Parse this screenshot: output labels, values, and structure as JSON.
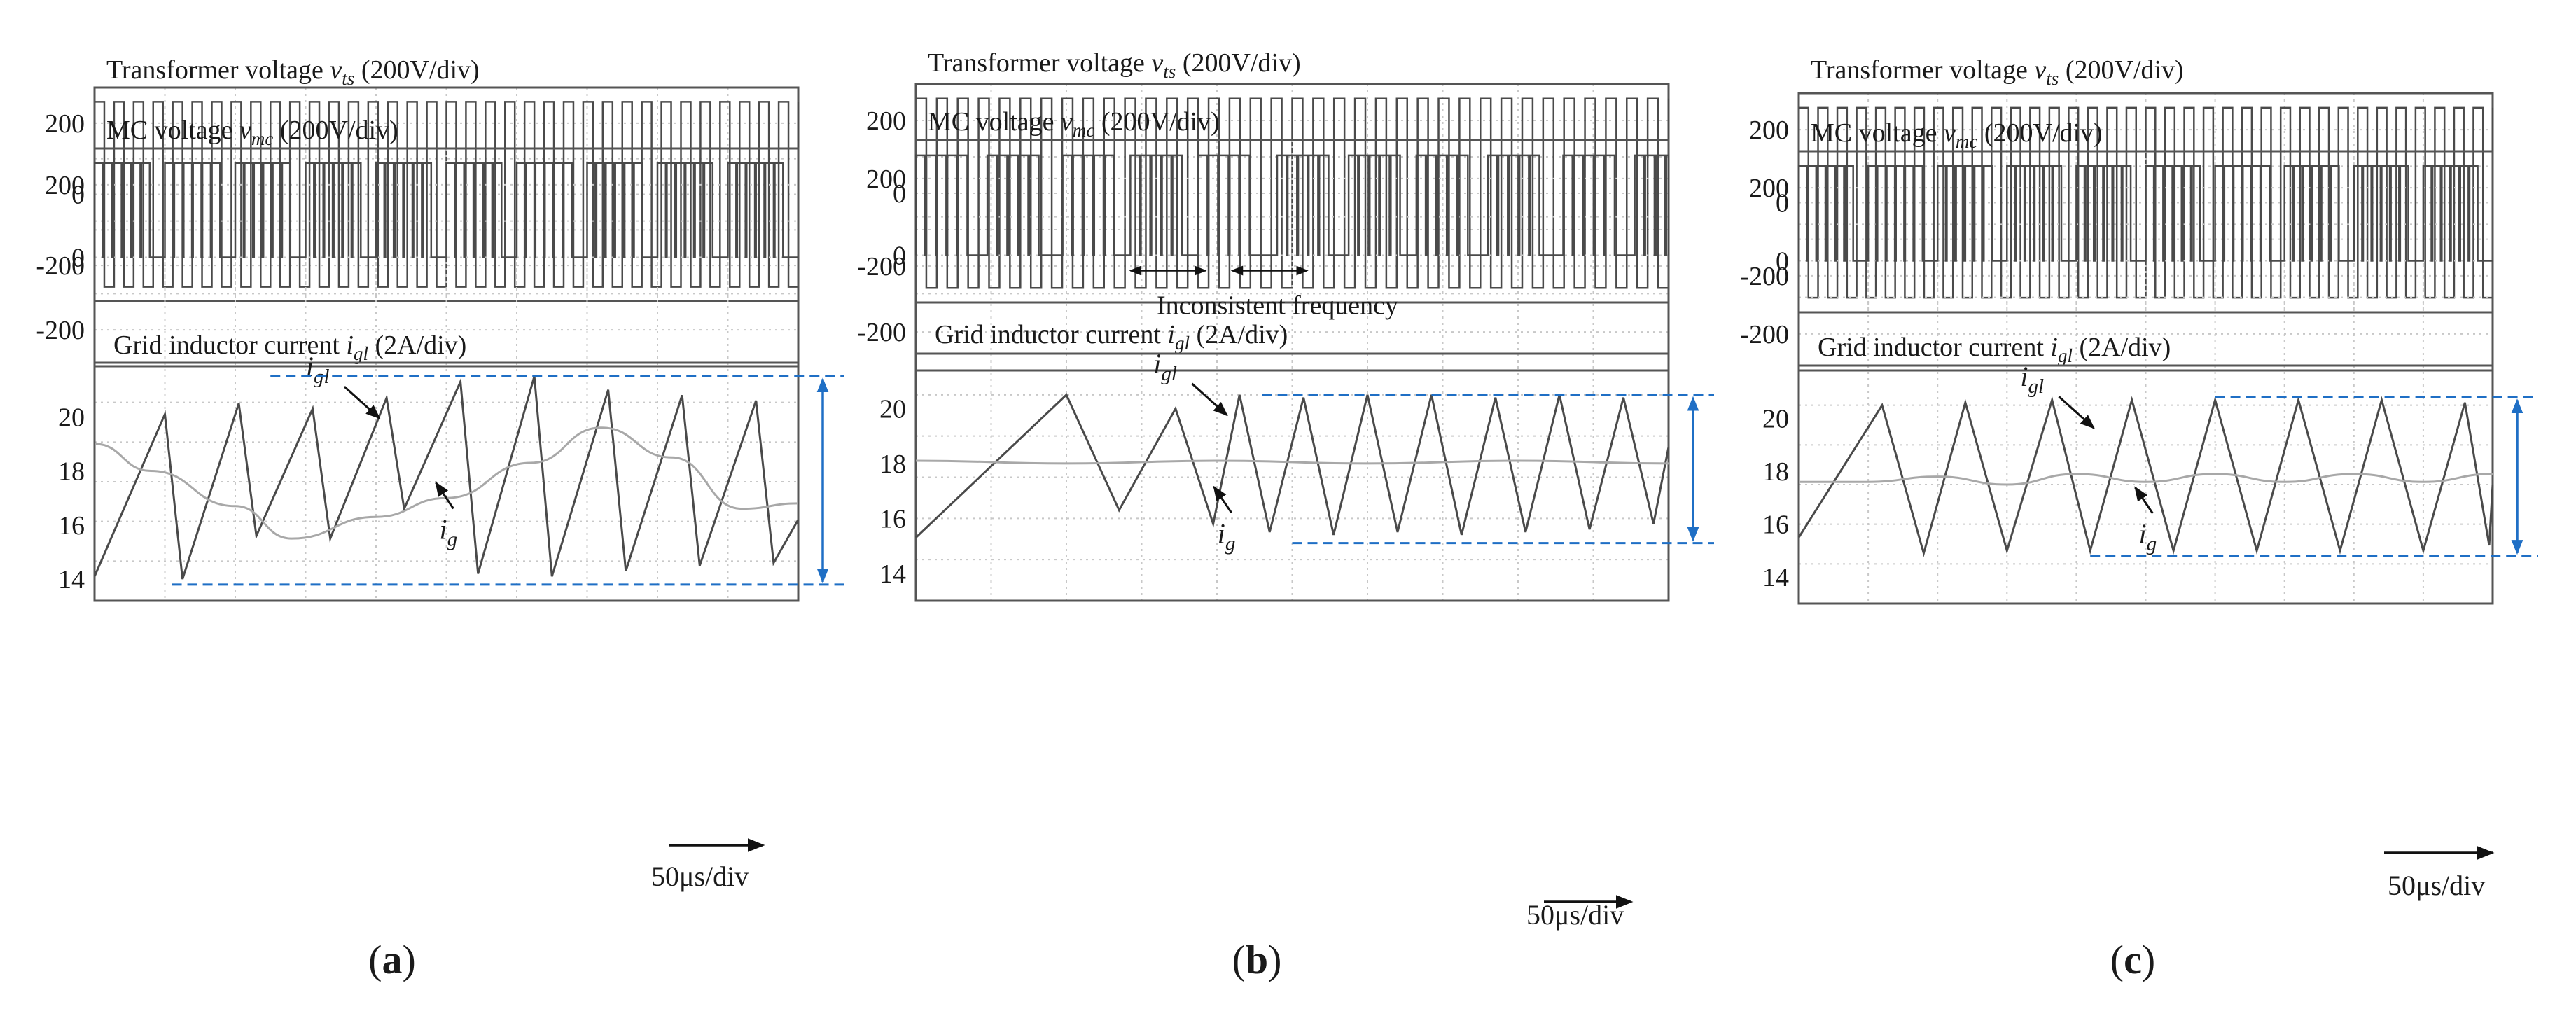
{
  "figure": {
    "panel_letters": [
      "a",
      "b",
      "c"
    ],
    "time_scale_label": "50μs/div",
    "chart_title_texts": {
      "transformer": {
        "prefix": "Transformer voltage ",
        "symbol": "v",
        "sub": "ts",
        "suffix": " (200V/div)"
      },
      "mc": {
        "prefix": "MC voltage ",
        "symbol": "v",
        "sub": "mc",
        "suffix": " (200V/div)"
      },
      "grid": {
        "prefix": "Grid inductor current ",
        "symbol": "i",
        "sub": "gl",
        "suffix": " (2A/div)"
      }
    },
    "series_labels": {
      "igl": {
        "symbol": "i",
        "sub": "gl"
      },
      "ig": {
        "symbol": "i",
        "sub": "g"
      }
    },
    "colors": {
      "trace": "#4a4a4a",
      "trace_light": "#a8a8a8",
      "grid": "#c8c8c8",
      "frame": "#555555",
      "annotation": "#1f6fc5",
      "text": "#1a1a1a"
    }
  },
  "chart_data": [
    {
      "panel": "a",
      "type": "line",
      "transformer": {
        "title": "Transformer voltage v_ts (200V/div)",
        "yticks": [
          200,
          0,
          -200
        ],
        "ylim": [
          -300,
          300
        ],
        "levels": [
          260,
          -260
        ],
        "cycles": 36
      },
      "mc": {
        "title": "MC voltage v_mc (200V/div)",
        "yticks": [
          200,
          0,
          -200
        ],
        "ylim": [
          -300,
          300
        ],
        "level": 260,
        "group_starts": [
          0,
          0.1,
          0.2,
          0.3,
          0.4,
          0.5,
          0.6,
          0.7,
          0.8,
          0.9
        ],
        "group_width": 0.08,
        "pulses_per_group": 6
      },
      "grid": {
        "title": "Grid inductor current i_gl (2A/div)",
        "yticks": [
          20,
          18,
          16,
          14
        ],
        "ylim": [
          13.2,
          22
        ],
        "igl": {
          "peaks": [
            0.1,
            0.205,
            0.31,
            0.415,
            0.52,
            0.625,
            0.73,
            0.835,
            0.94
          ],
          "valleys": [
            0.0,
            0.125,
            0.23,
            0.335,
            0.44,
            0.545,
            0.65,
            0.755,
            0.86,
            0.965
          ],
          "peak_values": [
            20.1,
            20.5,
            20.3,
            20.7,
            21.3,
            21.5,
            21.0,
            20.8,
            20.6
          ],
          "valley_values": [
            14.1,
            14.0,
            15.6,
            15.5,
            16.6,
            14.2,
            14.1,
            14.3,
            14.5,
            14.6
          ],
          "end": [
            1.0,
            16.2
          ]
        },
        "ig": {
          "x": [
            0,
            0.08,
            0.2,
            0.28,
            0.4,
            0.5,
            0.62,
            0.72,
            0.82,
            0.92,
            1.0
          ],
          "y": [
            19.0,
            18.0,
            16.7,
            15.5,
            16.3,
            17.0,
            18.3,
            19.6,
            18.5,
            16.6,
            16.8
          ]
        },
        "label_igl_at": [
          0.38,
          20.6
        ],
        "label_ig_at": [
          0.5,
          16.4
        ],
        "annotation_range": [
          13.8,
          21.5
        ]
      }
    },
    {
      "panel": "b",
      "type": "line",
      "transformer": {
        "title": "Transformer voltage v_ts (200V/div)",
        "yticks": [
          200,
          0,
          -200
        ],
        "ylim": [
          -300,
          300
        ],
        "levels": [
          260,
          -260
        ],
        "cycles": 36
      },
      "mc": {
        "title": "MC voltage v_mc (200V/div)",
        "yticks": [
          200,
          0,
          -200
        ],
        "ylim": [
          -300,
          300
        ],
        "level": 260,
        "group_starts": [
          0,
          0.095,
          0.195,
          0.285,
          0.375,
          0.48,
          0.575,
          0.665,
          0.76,
          0.86,
          0.955
        ],
        "group_width": 0.07,
        "pulses_per_group": 5,
        "annotation": "Inconsistent frequency"
      },
      "grid": {
        "title": "Grid inductor current i_gl (2A/div)",
        "yticks": [
          20,
          18,
          16,
          14
        ],
        "ylim": [
          13.0,
          22
        ],
        "igl": {
          "peaks": [
            0.2,
            0.345,
            0.43,
            0.515,
            0.6,
            0.685,
            0.77,
            0.855,
            0.94
          ],
          "valleys": [
            0.0,
            0.27,
            0.395,
            0.47,
            0.555,
            0.64,
            0.725,
            0.81,
            0.895,
            0.98
          ],
          "peak_values": [
            20.5,
            20.0,
            20.5,
            20.4,
            20.5,
            20.5,
            20.4,
            20.5,
            20.4
          ],
          "valley_values": [
            15.3,
            16.3,
            15.8,
            15.5,
            15.4,
            15.5,
            15.4,
            15.5,
            15.6,
            15.8
          ],
          "end": [
            1.0,
            18.6
          ]
        },
        "ig": {
          "x": [
            0,
            0.2,
            0.4,
            0.6,
            0.8,
            1.0
          ],
          "y": [
            18.1,
            18.0,
            18.1,
            18.0,
            18.1,
            18.0
          ]
        },
        "label_igl_at": [
          0.39,
          20.4
        ],
        "label_ig_at": [
          0.41,
          16.0
        ],
        "annotation_range": [
          15.1,
          20.5
        ]
      }
    },
    {
      "panel": "c",
      "type": "line",
      "transformer": {
        "title": "Transformer voltage v_ts (200V/div)",
        "yticks": [
          200,
          0,
          -200
        ],
        "ylim": [
          -300,
          300
        ],
        "levels": [
          260,
          -260
        ],
        "cycles": 36
      },
      "mc": {
        "title": "MC voltage v_mc (200V/div)",
        "yticks": [
          200,
          0,
          -200
        ],
        "ylim": [
          -300,
          300
        ],
        "level": 260,
        "group_starts": [
          0,
          0.1,
          0.2,
          0.3,
          0.4,
          0.5,
          0.6,
          0.7,
          0.8,
          0.9
        ],
        "group_width": 0.08,
        "pulses_per_group": 6
      },
      "grid": {
        "title": "Grid inductor current i_gl (2A/div)",
        "yticks": [
          20,
          18,
          16,
          14
        ],
        "ylim": [
          13.0,
          22
        ],
        "igl": {
          "peaks": [
            0.12,
            0.24,
            0.365,
            0.48,
            0.6,
            0.72,
            0.84,
            0.96
          ],
          "valleys": [
            0.0,
            0.18,
            0.3,
            0.42,
            0.54,
            0.66,
            0.78,
            0.9,
            0.995
          ],
          "peak_values": [
            20.5,
            20.6,
            20.7,
            20.7,
            20.7,
            20.7,
            20.7,
            20.6
          ],
          "valley_values": [
            15.5,
            14.9,
            15.0,
            15.0,
            15.0,
            15.0,
            15.0,
            15.0,
            15.2
          ],
          "end": [
            1.0,
            17.5
          ]
        },
        "ig": {
          "x": [
            0,
            0.1,
            0.2,
            0.3,
            0.4,
            0.5,
            0.6,
            0.7,
            0.8,
            0.9,
            1.0
          ],
          "y": [
            17.6,
            17.6,
            17.8,
            17.5,
            17.9,
            17.6,
            17.9,
            17.6,
            17.9,
            17.6,
            17.9
          ]
        },
        "label_igl_at": [
          0.4,
          20.3
        ],
        "label_ig_at": [
          0.5,
          16.2
        ],
        "annotation_range": [
          14.8,
          20.8
        ]
      }
    }
  ]
}
